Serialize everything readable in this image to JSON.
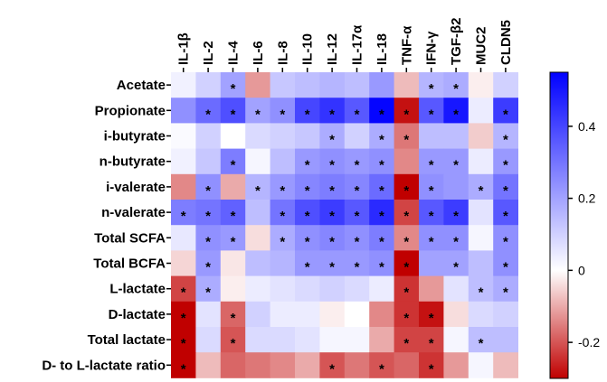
{
  "chart_data": {
    "type": "heatmap",
    "columns": [
      "IL-1β",
      "IL-2",
      "IL-4",
      "IL-6",
      "IL-8",
      "IL-10",
      "IL-12",
      "IL-17α",
      "IL-18",
      "TNF-α",
      "IFN-γ",
      "TGF-β2",
      "MUC2",
      "CLDN5"
    ],
    "rows": [
      "Acetate",
      "Propionate",
      "i-butyrate",
      "n-butyrate",
      "i-valerate",
      "n-valerate",
      "Total SCFA",
      "Total BCFA",
      "L-lactate",
      "D-lactate",
      "Total lactate",
      "D- to L-lactate ratio"
    ],
    "values": [
      [
        0.03,
        0.1,
        0.2,
        -0.12,
        0.12,
        0.14,
        0.16,
        0.14,
        0.22,
        -0.08,
        0.16,
        0.18,
        -0.02,
        0.1
      ],
      [
        0.24,
        0.32,
        0.38,
        0.2,
        0.24,
        0.4,
        0.44,
        0.36,
        0.54,
        -0.28,
        0.36,
        0.5,
        0.04,
        0.42
      ],
      [
        0.01,
        0.1,
        0.0,
        0.08,
        0.1,
        0.12,
        0.18,
        0.1,
        0.18,
        -0.16,
        0.14,
        0.14,
        -0.06,
        0.16
      ],
      [
        0.03,
        0.12,
        0.28,
        0.02,
        0.14,
        0.22,
        0.24,
        0.22,
        0.24,
        -0.14,
        0.22,
        0.22,
        0.04,
        0.22
      ],
      [
        -0.14,
        0.24,
        -0.1,
        0.16,
        0.22,
        0.26,
        0.28,
        0.26,
        0.32,
        -0.34,
        0.24,
        0.22,
        0.18,
        0.3
      ],
      [
        0.28,
        0.3,
        0.34,
        0.14,
        0.3,
        0.38,
        0.42,
        0.36,
        0.46,
        -0.22,
        0.36,
        0.42,
        0.06,
        0.36
      ],
      [
        0.05,
        0.24,
        0.22,
        -0.04,
        0.18,
        0.24,
        0.26,
        0.24,
        0.28,
        -0.14,
        0.24,
        0.24,
        0.02,
        0.24
      ],
      [
        -0.05,
        0.22,
        -0.03,
        0.14,
        0.16,
        0.22,
        0.22,
        0.22,
        0.24,
        -0.32,
        0.2,
        0.2,
        0.14,
        0.24
      ],
      [
        -0.22,
        0.18,
        -0.02,
        0.04,
        0.06,
        0.08,
        0.1,
        0.08,
        0.04,
        -0.24,
        -0.12,
        0.06,
        0.14,
        0.18
      ],
      [
        -0.36,
        0.06,
        -0.18,
        0.1,
        0.04,
        0.04,
        -0.02,
        0.0,
        -0.14,
        -0.24,
        -0.28,
        -0.04,
        0.08,
        0.1
      ],
      [
        -0.3,
        0.08,
        -0.2,
        0.08,
        0.08,
        0.06,
        0.02,
        0.02,
        -0.1,
        -0.22,
        -0.22,
        0.02,
        0.14,
        0.14
      ],
      [
        -0.3,
        -0.08,
        -0.18,
        -0.16,
        -0.14,
        -0.1,
        -0.2,
        -0.16,
        -0.2,
        -0.18,
        -0.24,
        -0.12,
        0.02,
        -0.08
      ]
    ],
    "significance": [
      [
        false,
        false,
        true,
        false,
        false,
        false,
        false,
        false,
        false,
        false,
        true,
        true,
        false,
        false
      ],
      [
        false,
        true,
        true,
        true,
        true,
        true,
        true,
        true,
        true,
        true,
        true,
        true,
        false,
        true
      ],
      [
        false,
        false,
        false,
        false,
        false,
        false,
        true,
        false,
        true,
        true,
        false,
        false,
        false,
        true
      ],
      [
        false,
        false,
        true,
        false,
        false,
        true,
        true,
        true,
        true,
        false,
        true,
        true,
        false,
        true
      ],
      [
        false,
        true,
        false,
        true,
        true,
        true,
        true,
        true,
        true,
        true,
        true,
        false,
        true,
        true
      ],
      [
        true,
        true,
        true,
        false,
        true,
        true,
        true,
        true,
        true,
        true,
        true,
        true,
        false,
        true
      ],
      [
        false,
        true,
        true,
        false,
        true,
        true,
        true,
        true,
        true,
        true,
        true,
        true,
        false,
        true
      ],
      [
        false,
        true,
        false,
        false,
        false,
        true,
        true,
        true,
        true,
        true,
        false,
        true,
        false,
        true
      ],
      [
        true,
        true,
        false,
        false,
        false,
        false,
        false,
        false,
        false,
        true,
        false,
        false,
        true,
        true
      ],
      [
        true,
        false,
        true,
        false,
        false,
        false,
        false,
        false,
        false,
        true,
        true,
        false,
        false,
        false
      ],
      [
        true,
        false,
        true,
        false,
        false,
        false,
        false,
        false,
        false,
        true,
        true,
        false,
        true,
        false
      ],
      [
        true,
        false,
        false,
        false,
        false,
        false,
        true,
        false,
        true,
        false,
        true,
        false,
        false,
        false
      ]
    ],
    "star_symbol": "*",
    "colorbar": {
      "min": -0.3,
      "max": 0.55,
      "ticks": [
        0.4,
        0.2,
        0,
        -0.2
      ],
      "tick_labels": [
        "0.4",
        "0.2",
        "0",
        "-0.2"
      ],
      "low_color": "#c00000",
      "mid_color": "#ffffff",
      "high_color": "#0000ff"
    }
  }
}
